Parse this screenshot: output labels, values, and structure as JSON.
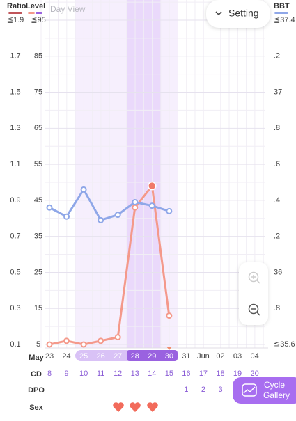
{
  "header": {
    "view": "Day View",
    "setting": "Setting"
  },
  "chart_data": {
    "type": "line",
    "ylabel": "Level",
    "y2label": "BBT",
    "y3label": "Ratio",
    "categories": [
      "23",
      "24",
      "25",
      "26",
      "27",
      "28",
      "29",
      "30",
      "31",
      "Jun",
      "02",
      "03",
      "04"
    ],
    "ylim": [
      5,
      95
    ],
    "yticks": [
      5,
      15,
      25,
      35,
      45,
      55,
      65,
      75,
      85,
      {
        "value": 95,
        "label": "≦95"
      }
    ],
    "y2lim": [
      35.6,
      37.4
    ],
    "y2ticks": [
      {
        "value": 35.6,
        "label": "≦35.6"
      },
      {
        "value": 35.8,
        "label": ".8"
      },
      36,
      {
        "value": 36.2,
        "label": ".2"
      },
      {
        "value": 36.4,
        "label": ".4"
      },
      {
        "value": 36.6,
        "label": ".6"
      },
      {
        "value": 36.8,
        "label": ".8"
      },
      37,
      {
        "value": 37.2,
        "label": ".2"
      },
      {
        "value": 37.4,
        "label": "≦37.4"
      }
    ],
    "y3lim": [
      0.1,
      1.9
    ],
    "y3ticks": [
      0.1,
      0.3,
      0.5,
      0.7,
      0.9,
      1.1,
      1.3,
      1.5,
      1.7,
      {
        "value": 1.9,
        "label": "≦1.9"
      }
    ],
    "grid": true,
    "series": [
      {
        "name": "Level",
        "color": "#f4998a",
        "values": [
          5,
          6,
          5,
          6,
          7,
          43,
          49,
          13,
          null,
          null,
          null,
          null,
          null
        ]
      },
      {
        "name": "BBT",
        "color": "#8fa7e8",
        "axis": "y2",
        "values": [
          36.36,
          36.31,
          36.46,
          36.29,
          36.32,
          36.39,
          36.37,
          36.34,
          null,
          null,
          null,
          null,
          null
        ]
      }
    ]
  },
  "rows": {
    "month": "May",
    "cd_label": "CD",
    "cd": [
      8,
      9,
      10,
      11,
      12,
      13,
      14,
      15,
      16,
      17,
      18,
      19,
      20
    ],
    "dpo_label": "DPO",
    "dpo": [
      null,
      null,
      null,
      null,
      null,
      null,
      null,
      null,
      1,
      2,
      3,
      null,
      null
    ],
    "sex_label": "Sex"
  },
  "buttons": {
    "cycle_gallery": [
      "Cycle",
      "Gallery"
    ]
  }
}
